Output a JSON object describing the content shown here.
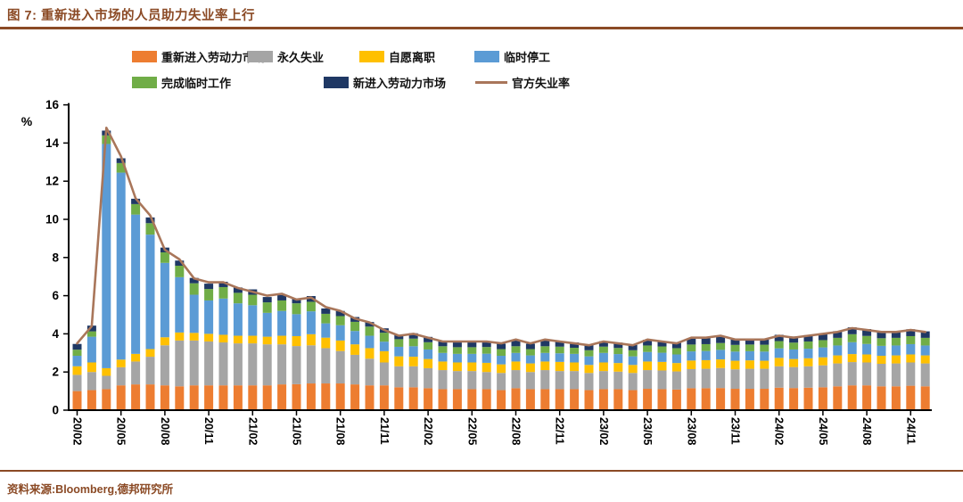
{
  "page": {
    "title": "图 7: 重新进入市场的人员助力失业率上行",
    "source": "资料来源:Bloomberg,德邦研究所",
    "accent_color": "#8B4A25"
  },
  "chart_data": {
    "type": "bar",
    "stacked": true,
    "overlay": "line",
    "unit_label": "%",
    "ylim": [
      0,
      16
    ],
    "ytick_step": 2,
    "grid": false,
    "legend_position": "top",
    "xtick_every": 3,
    "categories": [
      "20/02",
      "20/03",
      "20/04",
      "20/05",
      "20/06",
      "20/07",
      "20/08",
      "20/09",
      "20/10",
      "20/11",
      "20/12",
      "21/01",
      "21/02",
      "21/03",
      "21/04",
      "21/05",
      "21/06",
      "21/07",
      "21/08",
      "21/09",
      "21/10",
      "21/11",
      "21/12",
      "22/01",
      "22/02",
      "22/03",
      "22/04",
      "22/05",
      "22/06",
      "22/07",
      "22/08",
      "22/09",
      "22/10",
      "22/11",
      "22/12",
      "23/01",
      "23/02",
      "23/03",
      "23/04",
      "23/05",
      "23/06",
      "23/07",
      "23/08",
      "23/09",
      "23/10",
      "23/11",
      "23/12",
      "24/01",
      "24/02",
      "24/03",
      "24/04",
      "24/05",
      "24/06",
      "24/07",
      "24/08",
      "24/09",
      "24/10",
      "24/11",
      "24/12"
    ],
    "series": [
      {
        "name": "重新进入劳动力市场",
        "type": "bar",
        "color": "#ED7D31",
        "values": [
          1.0,
          1.05,
          1.1,
          1.3,
          1.35,
          1.35,
          1.3,
          1.25,
          1.3,
          1.3,
          1.3,
          1.3,
          1.3,
          1.3,
          1.35,
          1.36,
          1.4,
          1.4,
          1.4,
          1.35,
          1.3,
          1.3,
          1.2,
          1.2,
          1.15,
          1.1,
          1.1,
          1.1,
          1.1,
          1.05,
          1.15,
          1.1,
          1.1,
          1.1,
          1.1,
          1.05,
          1.1,
          1.1,
          1.05,
          1.12,
          1.1,
          1.08,
          1.15,
          1.15,
          1.16,
          1.12,
          1.12,
          1.12,
          1.18,
          1.16,
          1.18,
          1.2,
          1.25,
          1.3,
          1.3,
          1.25,
          1.25,
          1.28,
          1.25
        ]
      },
      {
        "name": "永久失业",
        "type": "bar",
        "color": "#A5A5A5",
        "values": [
          0.85,
          0.95,
          0.7,
          0.95,
          1.2,
          1.45,
          2.1,
          2.4,
          2.35,
          2.3,
          2.25,
          2.2,
          2.2,
          2.15,
          2.1,
          2.0,
          2.0,
          1.85,
          1.7,
          1.55,
          1.4,
          1.2,
          1.1,
          1.1,
          1.05,
          1.0,
          0.95,
          0.95,
          0.9,
          0.9,
          0.95,
          0.9,
          1.0,
          0.95,
          0.95,
          0.9,
          0.95,
          0.92,
          0.9,
          0.98,
          0.98,
          0.95,
          1.0,
          1.02,
          1.05,
          1.02,
          1.05,
          1.05,
          1.12,
          1.1,
          1.12,
          1.15,
          1.2,
          1.22,
          1.2,
          1.18,
          1.2,
          1.22,
          1.2
        ]
      },
      {
        "name": "自愿离职",
        "type": "bar",
        "color": "#FFC000",
        "values": [
          0.45,
          0.5,
          0.4,
          0.4,
          0.4,
          0.4,
          0.42,
          0.42,
          0.4,
          0.4,
          0.4,
          0.4,
          0.4,
          0.4,
          0.45,
          0.52,
          0.58,
          0.55,
          0.55,
          0.55,
          0.55,
          0.59,
          0.52,
          0.5,
          0.48,
          0.45,
          0.45,
          0.45,
          0.48,
          0.45,
          0.45,
          0.45,
          0.45,
          0.48,
          0.45,
          0.42,
          0.45,
          0.45,
          0.42,
          0.45,
          0.45,
          0.44,
          0.45,
          0.45,
          0.45,
          0.45,
          0.44,
          0.42,
          0.44,
          0.42,
          0.42,
          0.42,
          0.42,
          0.42,
          0.42,
          0.42,
          0.42,
          0.42,
          0.42
        ]
      },
      {
        "name": "临时停工",
        "type": "bar",
        "color": "#5B9BD5",
        "values": [
          0.55,
          1.35,
          11.75,
          9.8,
          7.3,
          6.0,
          3.9,
          2.9,
          2.0,
          1.75,
          1.9,
          1.7,
          1.6,
          1.25,
          1.3,
          1.15,
          1.2,
          0.75,
          0.8,
          0.7,
          0.65,
          0.5,
          0.5,
          0.55,
          0.5,
          0.45,
          0.45,
          0.45,
          0.48,
          0.45,
          0.45,
          0.42,
          0.45,
          0.45,
          0.45,
          0.45,
          0.5,
          0.47,
          0.45,
          0.5,
          0.48,
          0.45,
          0.48,
          0.48,
          0.5,
          0.48,
          0.48,
          0.48,
          0.5,
          0.5,
          0.5,
          0.52,
          0.52,
          0.62,
          0.55,
          0.52,
          0.52,
          0.54,
          0.52
        ]
      },
      {
        "name": "完成临时工作",
        "type": "bar",
        "color": "#70AD47",
        "values": [
          0.32,
          0.28,
          0.45,
          0.5,
          0.55,
          0.6,
          0.55,
          0.6,
          0.6,
          0.6,
          0.6,
          0.55,
          0.55,
          0.55,
          0.55,
          0.57,
          0.5,
          0.5,
          0.48,
          0.48,
          0.48,
          0.47,
          0.4,
          0.4,
          0.38,
          0.35,
          0.35,
          0.35,
          0.35,
          0.35,
          0.35,
          0.33,
          0.35,
          0.35,
          0.32,
          0.32,
          0.33,
          0.32,
          0.32,
          0.34,
          0.33,
          0.33,
          0.36,
          0.36,
          0.36,
          0.35,
          0.35,
          0.36,
          0.38,
          0.36,
          0.38,
          0.38,
          0.4,
          0.42,
          0.42,
          0.4,
          0.4,
          0.42,
          0.4
        ]
      },
      {
        "name": "新进入劳动力市场",
        "type": "bar",
        "color": "#1F3864",
        "values": [
          0.3,
          0.3,
          0.25,
          0.25,
          0.28,
          0.3,
          0.25,
          0.27,
          0.28,
          0.28,
          0.28,
          0.28,
          0.28,
          0.28,
          0.28,
          0.26,
          0.3,
          0.28,
          0.27,
          0.25,
          0.24,
          0.23,
          0.22,
          0.28,
          0.28,
          0.27,
          0.28,
          0.28,
          0.28,
          0.28,
          0.3,
          0.28,
          0.3,
          0.28,
          0.28,
          0.28,
          0.28,
          0.28,
          0.28,
          0.3,
          0.28,
          0.28,
          0.32,
          0.32,
          0.32,
          0.3,
          0.3,
          0.32,
          0.33,
          0.32,
          0.33,
          0.34,
          0.35,
          0.36,
          0.36,
          0.35,
          0.35,
          0.36,
          0.34
        ]
      },
      {
        "name": "官方失业率",
        "type": "line",
        "color": "#A9765A",
        "values": [
          3.5,
          4.4,
          14.8,
          13.3,
          11.1,
          10.2,
          8.4,
          7.9,
          6.9,
          6.7,
          6.7,
          6.4,
          6.2,
          6.0,
          6.1,
          5.8,
          5.9,
          5.4,
          5.2,
          4.8,
          4.6,
          4.2,
          3.9,
          4.0,
          3.8,
          3.6,
          3.6,
          3.6,
          3.6,
          3.5,
          3.7,
          3.5,
          3.7,
          3.6,
          3.5,
          3.4,
          3.6,
          3.5,
          3.4,
          3.7,
          3.6,
          3.5,
          3.8,
          3.8,
          3.9,
          3.7,
          3.7,
          3.7,
          3.9,
          3.8,
          3.9,
          4.0,
          4.1,
          4.3,
          4.2,
          4.1,
          4.1,
          4.2,
          4.1
        ]
      }
    ]
  }
}
